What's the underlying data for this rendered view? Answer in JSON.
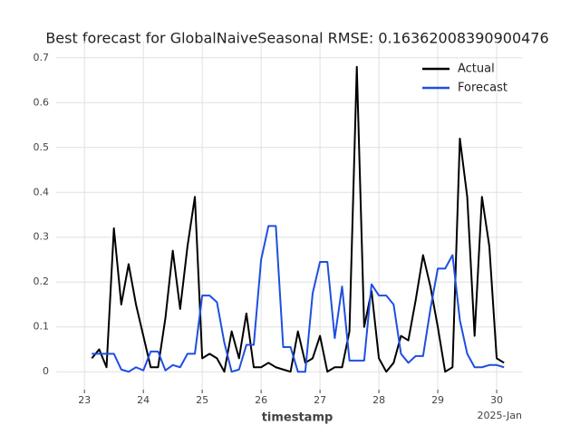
{
  "chart_data": {
    "type": "line",
    "title": "Best forecast for GlobalNaiveSeasonal RMSE: 0.16362008390900476",
    "x_label": "timestamp",
    "x_offset_label": "2025-Jan",
    "x": [
      23.125,
      23.25,
      23.375,
      23.5,
      23.625,
      23.75,
      23.875,
      24,
      24.125,
      24.25,
      24.375,
      24.5,
      24.625,
      24.75,
      24.875,
      25,
      25.125,
      25.25,
      25.375,
      25.5,
      25.625,
      25.75,
      25.875,
      26,
      26.125,
      26.25,
      26.375,
      26.5,
      26.625,
      26.75,
      26.875,
      27,
      27.125,
      27.25,
      27.375,
      27.5,
      27.625,
      27.75,
      27.875,
      28,
      28.125,
      28.25,
      28.375,
      28.5,
      28.625,
      28.75,
      28.875,
      29,
      29.125,
      29.25,
      29.375,
      29.5,
      29.625,
      29.75,
      29.875,
      30,
      30.125
    ],
    "series": [
      {
        "name": "Actual",
        "color": "#000000",
        "values": [
          0.03,
          0.05,
          0.01,
          0.32,
          0.15,
          0.24,
          0.15,
          0.08,
          0.01,
          0.01,
          0.12,
          0.27,
          0.14,
          0.28,
          0.39,
          0.03,
          0.04,
          0.03,
          0.0,
          0.09,
          0.03,
          0.13,
          0.01,
          0.01,
          0.02,
          0.01,
          0.005,
          0.0,
          0.09,
          0.02,
          0.03,
          0.08,
          0.0,
          0.01,
          0.01,
          0.09,
          0.68,
          0.1,
          0.18,
          0.03,
          0.0,
          0.02,
          0.08,
          0.07,
          0.16,
          0.26,
          0.19,
          0.1,
          0.0,
          0.01,
          0.52,
          0.39,
          0.08,
          0.39,
          0.28,
          0.03,
          0.02
        ]
      },
      {
        "name": "Forecast",
        "color": "#1f4fe0",
        "values": [
          0.04,
          0.04,
          0.04,
          0.04,
          0.005,
          0.0,
          0.01,
          0.003,
          0.045,
          0.045,
          0.003,
          0.015,
          0.01,
          0.04,
          0.04,
          0.17,
          0.17,
          0.155,
          0.065,
          0.0,
          0.005,
          0.06,
          0.06,
          0.25,
          0.325,
          0.325,
          0.055,
          0.055,
          0.0,
          0.0,
          0.175,
          0.245,
          0.245,
          0.075,
          0.19,
          0.025,
          0.025,
          0.025,
          0.195,
          0.17,
          0.17,
          0.15,
          0.04,
          0.02,
          0.035,
          0.035,
          0.14,
          0.23,
          0.23,
          0.26,
          0.115,
          0.04,
          0.01,
          0.01,
          0.015,
          0.015,
          0.01
        ]
      }
    ],
    "xlim": [
      22.52,
      30.43
    ],
    "xticks": [
      23,
      24,
      25,
      26,
      27,
      28,
      29,
      30
    ],
    "ylim": [
      -0.04,
      0.738
    ],
    "yticks": [
      0.0,
      0.1,
      0.2,
      0.3,
      0.4,
      0.5,
      0.6,
      0.7
    ],
    "grid": true,
    "legend": "upper right"
  }
}
